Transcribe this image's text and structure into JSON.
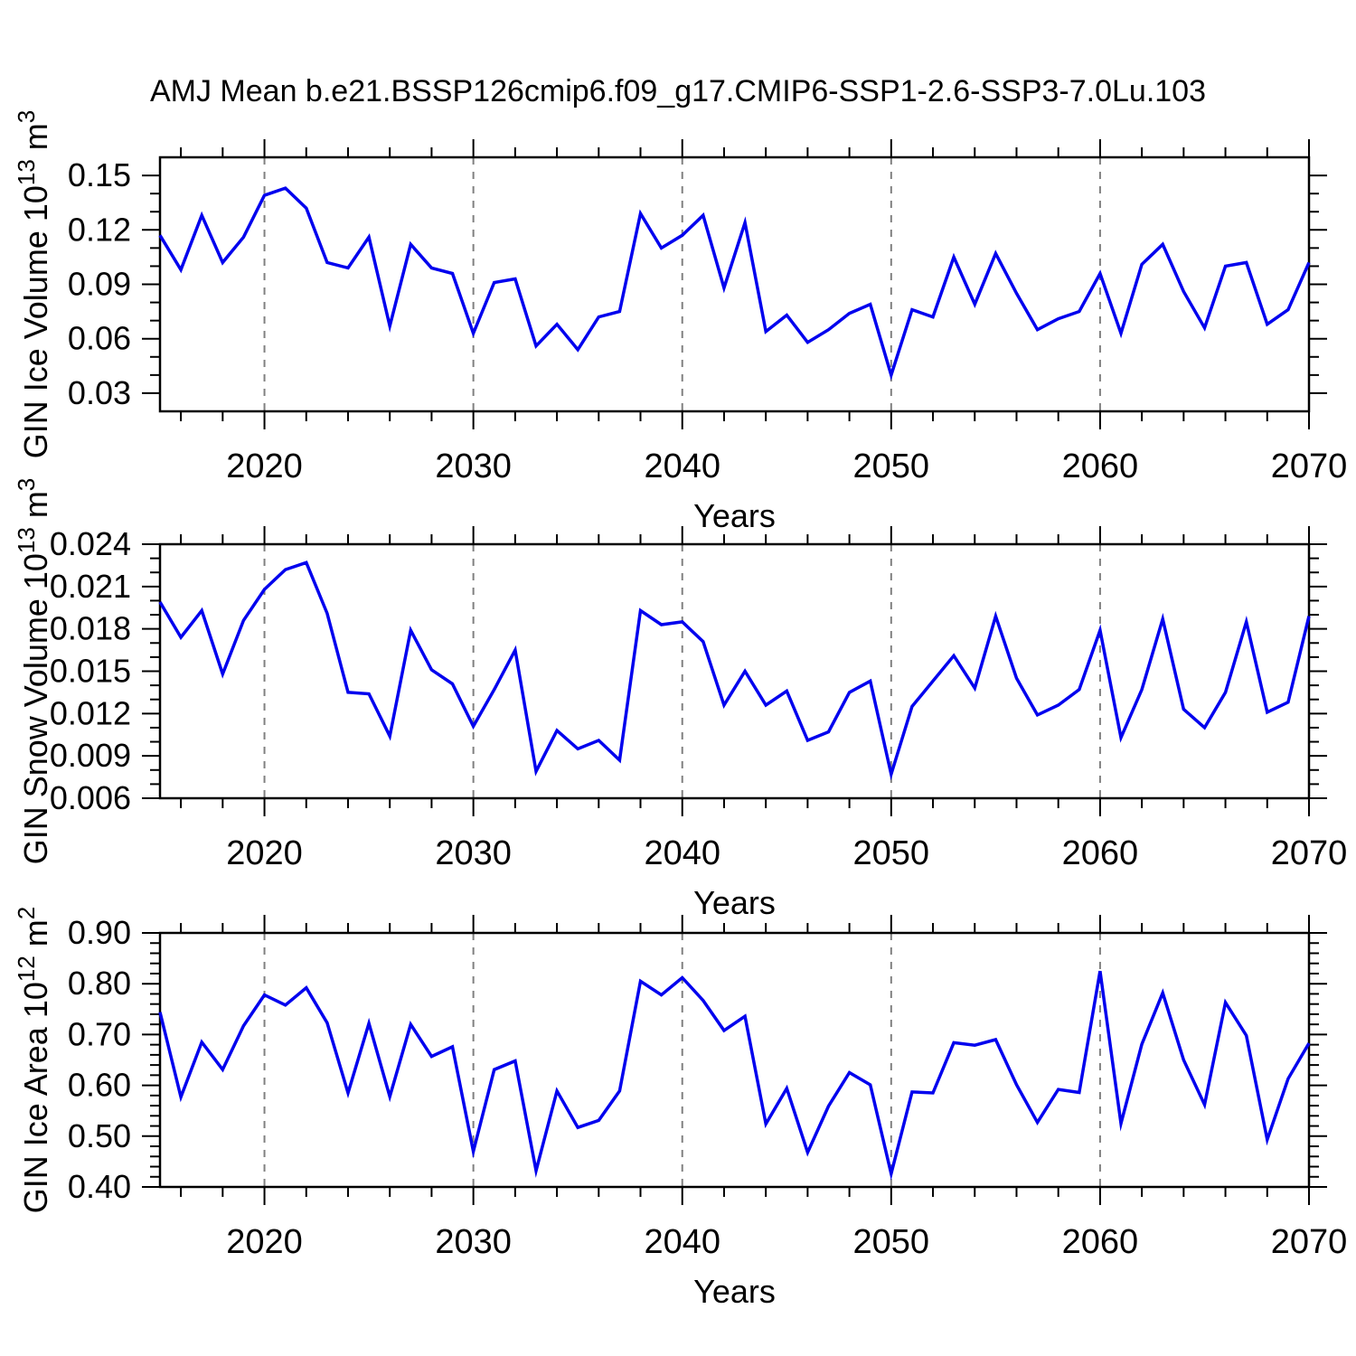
{
  "figure": {
    "title": "AMJ Mean b.e21.BSSP126cmip6.f09_g17.CMIP6-SSP1-2.6-SSP3-7.0Lu.103",
    "colors": {
      "line": "#0000ee",
      "grid": "#808080",
      "axis": "#000000",
      "background": "#ffffff",
      "text": "#000000"
    }
  },
  "chart_data": [
    {
      "type": "line",
      "name": "gin-ice-volume",
      "title": "",
      "xlabel": "Years",
      "ylabel": "GIN Ice Volume 10^13 m^3",
      "ylabel_segments": [
        {
          "t": "GIN Ice Volume 10"
        },
        {
          "t": "13",
          "sup": true
        },
        {
          "t": " m"
        },
        {
          "t": "3",
          "sup": true
        }
      ],
      "x": [
        2015,
        2016,
        2017,
        2018,
        2019,
        2020,
        2021,
        2022,
        2023,
        2024,
        2025,
        2026,
        2027,
        2028,
        2029,
        2030,
        2031,
        2032,
        2033,
        2034,
        2035,
        2036,
        2037,
        2038,
        2039,
        2040,
        2041,
        2042,
        2043,
        2044,
        2045,
        2046,
        2047,
        2048,
        2049,
        2050,
        2051,
        2052,
        2053,
        2054,
        2055,
        2056,
        2057,
        2058,
        2059,
        2060,
        2061,
        2062,
        2063,
        2064,
        2065,
        2066,
        2067,
        2068,
        2069,
        2070
      ],
      "values": [
        0.117,
        0.098,
        0.128,
        0.102,
        0.116,
        0.139,
        0.143,
        0.132,
        0.102,
        0.099,
        0.116,
        0.067,
        0.112,
        0.099,
        0.096,
        0.063,
        0.091,
        0.093,
        0.056,
        0.068,
        0.054,
        0.072,
        0.075,
        0.129,
        0.11,
        0.117,
        0.128,
        0.088,
        0.124,
        0.064,
        0.073,
        0.058,
        0.065,
        0.074,
        0.079,
        0.04,
        0.076,
        0.072,
        0.105,
        0.079,
        0.107,
        0.085,
        0.065,
        0.071,
        0.075,
        0.096,
        0.063,
        0.101,
        0.112,
        0.086,
        0.066,
        0.1,
        0.102,
        0.068,
        0.076,
        0.102
      ],
      "xlim": [
        2015,
        2070
      ],
      "ylim": [
        0.02,
        0.16
      ],
      "xticks": [
        2020,
        2030,
        2040,
        2050,
        2060,
        2070
      ],
      "xtick_labels": [
        "2020",
        "2030",
        "2040",
        "2050",
        "2060",
        "2070"
      ],
      "x_minor_step": 2,
      "yticks": [
        0.03,
        0.06,
        0.09,
        0.12,
        0.15
      ],
      "ytick_labels": [
        "0.03",
        "0.06",
        "0.09",
        "0.12",
        "0.15"
      ],
      "y_minor_step": 0.01,
      "grid_x": [
        2020,
        2030,
        2040,
        2050,
        2060
      ],
      "grid_style": "dashed",
      "legend_position": "none"
    },
    {
      "type": "line",
      "name": "gin-snow-volume",
      "title": "",
      "xlabel": "Years",
      "ylabel": "GIN Snow Volume 10^13 m^3",
      "ylabel_segments": [
        {
          "t": "GIN Snow Volume 10"
        },
        {
          "t": "13",
          "sup": true
        },
        {
          "t": " m"
        },
        {
          "t": "3",
          "sup": true
        }
      ],
      "x": [
        2015,
        2016,
        2017,
        2018,
        2019,
        2020,
        2021,
        2022,
        2023,
        2024,
        2025,
        2026,
        2027,
        2028,
        2029,
        2030,
        2031,
        2032,
        2033,
        2034,
        2035,
        2036,
        2037,
        2038,
        2039,
        2040,
        2041,
        2042,
        2043,
        2044,
        2045,
        2046,
        2047,
        2048,
        2049,
        2050,
        2051,
        2052,
        2053,
        2054,
        2055,
        2056,
        2057,
        2058,
        2059,
        2060,
        2061,
        2062,
        2063,
        2064,
        2065,
        2066,
        2067,
        2068,
        2069,
        2070
      ],
      "values": [
        0.0199,
        0.0174,
        0.0193,
        0.0148,
        0.0186,
        0.0208,
        0.0222,
        0.0227,
        0.0191,
        0.0135,
        0.0134,
        0.0104,
        0.0179,
        0.0151,
        0.0141,
        0.0111,
        0.0137,
        0.0165,
        0.0079,
        0.0108,
        0.0095,
        0.0101,
        0.0087,
        0.0193,
        0.0183,
        0.0185,
        0.0171,
        0.0126,
        0.015,
        0.0126,
        0.0136,
        0.0101,
        0.0107,
        0.0135,
        0.0143,
        0.0077,
        0.0125,
        0.0143,
        0.0161,
        0.0138,
        0.0189,
        0.0145,
        0.0119,
        0.0126,
        0.0137,
        0.0179,
        0.0103,
        0.0137,
        0.0187,
        0.0123,
        0.011,
        0.0135,
        0.0185,
        0.0121,
        0.0128,
        0.0189
      ],
      "xlim": [
        2015,
        2070
      ],
      "ylim": [
        0.006,
        0.024
      ],
      "xticks": [
        2020,
        2030,
        2040,
        2050,
        2060,
        2070
      ],
      "xtick_labels": [
        "2020",
        "2030",
        "2040",
        "2050",
        "2060",
        "2070"
      ],
      "x_minor_step": 2,
      "yticks": [
        0.006,
        0.009,
        0.012,
        0.015,
        0.018,
        0.021,
        0.024
      ],
      "ytick_labels": [
        "0.006",
        "0.009",
        "0.012",
        "0.015",
        "0.018",
        "0.021",
        "0.024"
      ],
      "y_minor_step": 0.001,
      "grid_x": [
        2020,
        2030,
        2040,
        2050,
        2060
      ],
      "grid_style": "dashed",
      "legend_position": "none"
    },
    {
      "type": "line",
      "name": "gin-ice-area",
      "title": "",
      "xlabel": "Years",
      "ylabel": "GIN Ice Area 10^12 m^2",
      "ylabel_segments": [
        {
          "t": "GIN Ice Area 10"
        },
        {
          "t": "12",
          "sup": true
        },
        {
          "t": " m"
        },
        {
          "t": "2",
          "sup": true
        }
      ],
      "x": [
        2015,
        2016,
        2017,
        2018,
        2019,
        2020,
        2021,
        2022,
        2023,
        2024,
        2025,
        2026,
        2027,
        2028,
        2029,
        2030,
        2031,
        2032,
        2033,
        2034,
        2035,
        2036,
        2037,
        2038,
        2039,
        2040,
        2041,
        2042,
        2043,
        2044,
        2045,
        2046,
        2047,
        2048,
        2049,
        2050,
        2051,
        2052,
        2053,
        2054,
        2055,
        2056,
        2057,
        2058,
        2059,
        2060,
        2061,
        2062,
        2063,
        2064,
        2065,
        2066,
        2067,
        2068,
        2069,
        2070
      ],
      "values": [
        0.744,
        0.577,
        0.685,
        0.631,
        0.717,
        0.778,
        0.758,
        0.792,
        0.723,
        0.585,
        0.722,
        0.578,
        0.72,
        0.657,
        0.676,
        0.47,
        0.631,
        0.648,
        0.432,
        0.589,
        0.517,
        0.531,
        0.589,
        0.805,
        0.778,
        0.812,
        0.767,
        0.708,
        0.736,
        0.524,
        0.594,
        0.468,
        0.559,
        0.625,
        0.601,
        0.426,
        0.587,
        0.585,
        0.684,
        0.679,
        0.69,
        0.601,
        0.527,
        0.592,
        0.586,
        0.825,
        0.525,
        0.681,
        0.782,
        0.65,
        0.562,
        0.763,
        0.698,
        0.493,
        0.613,
        0.683
      ],
      "xlim": [
        2015,
        2070
      ],
      "ylim": [
        0.4,
        0.9
      ],
      "xticks": [
        2020,
        2030,
        2040,
        2050,
        2060,
        2070
      ],
      "xtick_labels": [
        "2020",
        "2030",
        "2040",
        "2050",
        "2060",
        "2070"
      ],
      "x_minor_step": 2,
      "yticks": [
        0.4,
        0.5,
        0.6,
        0.7,
        0.8,
        0.9
      ],
      "ytick_labels": [
        "0.40",
        "0.50",
        "0.60",
        "0.70",
        "0.80",
        "0.90"
      ],
      "y_minor_step": 0.02,
      "grid_x": [
        2020,
        2030,
        2040,
        2050,
        2060
      ],
      "grid_style": "dashed",
      "legend_position": "none"
    }
  ]
}
